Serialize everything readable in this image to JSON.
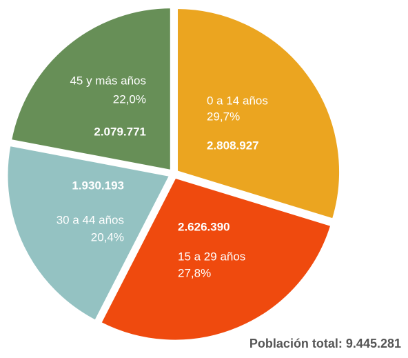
{
  "chart_data": {
    "type": "pie",
    "categories": [
      "0 a 14 años",
      "15 a 29 años",
      "30 a 44 años",
      "45 y más años"
    ],
    "values": [
      29.7,
      27.8,
      20.4,
      22.0
    ],
    "value_labels": [
      "29,7%",
      "27,8%",
      "20,4%",
      "22,0%"
    ],
    "counts": [
      2808927,
      2626390,
      1930193,
      2079771
    ],
    "count_labels": [
      "2.808.927",
      "2.626.390",
      "1.930.193",
      "2.079.771"
    ],
    "colors": [
      "#eba520",
      "#ef4a0e",
      "#94c2c2",
      "#678f57"
    ],
    "annotation": "Población total: 9.445.281"
  }
}
